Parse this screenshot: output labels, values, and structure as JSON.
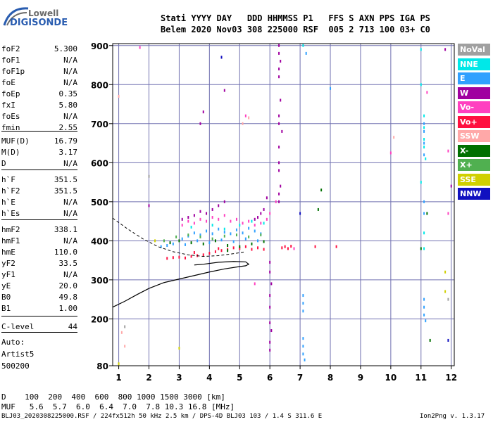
{
  "logo": {
    "top": "Lowell",
    "main": "DIGISONDE"
  },
  "header": {
    "line1": "Stati YYYY DAY   DDD HHMMSS P1   FFS S AXN PPS IGA PS",
    "line2": "Belem 2020 Nov03 308 225000 RSF  005 2 713 100 03+ C0"
  },
  "params": [
    {
      "name": "foF2",
      "value": "5.300"
    },
    {
      "name": "foF1",
      "value": "N/A"
    },
    {
      "name": "foF1p",
      "value": "N/A"
    },
    {
      "name": "foE",
      "value": "N/A"
    },
    {
      "name": "foEp",
      "value": "0.35"
    },
    {
      "name": "fxI",
      "value": "5.80"
    },
    {
      "name": "foEs",
      "value": "N/A"
    },
    {
      "name": "fmin",
      "value": "2.55"
    },
    {
      "name": "MUF(D)",
      "value": "16.79"
    },
    {
      "name": "M(D)",
      "value": "3.17"
    },
    {
      "name": "D",
      "value": "N/A"
    },
    {
      "name": "h`F",
      "value": "351.5"
    },
    {
      "name": "h`F2",
      "value": "351.5"
    },
    {
      "name": "h`E",
      "value": "N/A"
    },
    {
      "name": "h`Es",
      "value": "N/A"
    },
    {
      "name": "hmF2",
      "value": "338.1"
    },
    {
      "name": "hmF1",
      "value": "N/A"
    },
    {
      "name": "hmE",
      "value": "110.0"
    },
    {
      "name": "yF2",
      "value": "33.5"
    },
    {
      "name": "yF1",
      "value": "N/A"
    },
    {
      "name": "yE",
      "value": "20.0"
    },
    {
      "name": "B0",
      "value": "49.8"
    },
    {
      "name": "B1",
      "value": "1.00"
    },
    {
      "name": "C-level",
      "value": "44"
    }
  ],
  "auto": {
    "line1": "Auto:",
    "line2": "Artist5",
    "line3": "500200"
  },
  "legend": [
    {
      "label": "NoVal",
      "color": "#a0a0a0"
    },
    {
      "label": "NNE",
      "color": "#00e8e8"
    },
    {
      "label": "E",
      "color": "#30a0ff"
    },
    {
      "label": "W",
      "color": "#a000a0"
    },
    {
      "label": "Vo-",
      "color": "#ff40c0"
    },
    {
      "label": "Vo+",
      "color": "#ff1040"
    },
    {
      "label": "SSW",
      "color": "#ffa8a8"
    },
    {
      "label": "X-",
      "color": "#007000"
    },
    {
      "label": "X+",
      "color": "#50b050"
    },
    {
      "label": "SSE",
      "color": "#d0d000"
    },
    {
      "label": "NNW",
      "color": "#1010c0"
    }
  ],
  "footer": {
    "d_line": "D    100  200  400  600  800 1000 1500 3000 [km]",
    "muf_line": "MUF   5.6  5.7  6.0  6.4  7.0  7.8 10.3 16.8 [MHz]",
    "filename": "BLJ03_2020308225000.RSF / 224fx512h 50 kHz 2.5 km / DPS-4D BLJ03 103 / 1.4 S 311.6 E",
    "version": "Ion2Png v. 1.3.17"
  },
  "chart_data": {
    "type": "scatter",
    "xlim": [
      0.8,
      12.1
    ],
    "ylim": [
      80,
      905
    ],
    "x_ticks": [
      "1",
      "2",
      "3",
      "4",
      "5",
      "6",
      "7",
      "8",
      "9",
      "10",
      "11",
      "12"
    ],
    "y_ticks": [
      "80",
      "200",
      "300",
      "400",
      "500",
      "600",
      "700",
      "800",
      "900"
    ],
    "grid": true,
    "profile": {
      "x": [
        0.8,
        1.2,
        1.6,
        2.0,
        2.5,
        3.0,
        3.5,
        4.0,
        4.5,
        5.0,
        5.2,
        5.3,
        5.2,
        4.8,
        4.3,
        3.8,
        3.5
      ],
      "y": [
        230,
        245,
        262,
        278,
        293,
        302,
        311,
        320,
        328,
        334,
        336,
        340,
        346,
        347,
        345,
        340,
        338
      ]
    },
    "trace": {
      "x": [
        0.8,
        1.3,
        1.8,
        2.3,
        2.8,
        3.3,
        3.8,
        4.3,
        4.8,
        5.2
      ],
      "y": [
        458,
        430,
        405,
        385,
        372,
        364,
        360,
        362,
        367,
        372
      ]
    },
    "series": [
      {
        "name": "E",
        "color": "#30a0ff",
        "points": [
          [
            3.1,
            405
          ],
          [
            3.3,
            412
          ],
          [
            3.5,
            420
          ],
          [
            3.7,
            415
          ],
          [
            3.9,
            425
          ],
          [
            4.1,
            418
          ],
          [
            4.3,
            430
          ],
          [
            4.5,
            422
          ],
          [
            4.7,
            418
          ],
          [
            4.9,
            428
          ],
          [
            5.1,
            420
          ],
          [
            5.3,
            432
          ],
          [
            5.5,
            425
          ],
          [
            5.7,
            418
          ],
          [
            3.2,
            390
          ],
          [
            3.6,
            400
          ],
          [
            4.0,
            395
          ],
          [
            4.4,
            402
          ],
          [
            4.8,
            398
          ],
          [
            5.2,
            405
          ],
          [
            5.6,
            400
          ],
          [
            2.8,
            392
          ],
          [
            2.6,
            388
          ],
          [
            2.4,
            385
          ],
          [
            7.1,
            150
          ],
          [
            7.1,
            130
          ],
          [
            7.1,
            110
          ],
          [
            7.15,
            95
          ],
          [
            7.1,
            240
          ],
          [
            7.1,
            220
          ],
          [
            7.1,
            260
          ],
          [
            11.1,
            230
          ],
          [
            11.1,
            210
          ],
          [
            11.15,
            195
          ],
          [
            11.1,
            250
          ],
          [
            11.1,
            620
          ],
          [
            11.1,
            650
          ],
          [
            11.1,
            680
          ],
          [
            11.1,
            700
          ],
          [
            11.1,
            470
          ],
          [
            11.1,
            500
          ],
          [
            7.2,
            880
          ],
          [
            8.0,
            790
          ]
        ]
      },
      {
        "name": "NNE",
        "color": "#00e8e8",
        "points": [
          [
            11.1,
            640
          ],
          [
            11.1,
            660
          ],
          [
            11.1,
            690
          ],
          [
            11.1,
            720
          ],
          [
            11.15,
            610
          ],
          [
            7.1,
            900
          ],
          [
            11.0,
            890
          ],
          [
            11.0,
            550
          ],
          [
            11.1,
            380
          ],
          [
            11.1,
            420
          ],
          [
            11.0,
            800
          ],
          [
            4.5,
            430
          ],
          [
            5.0,
            440
          ],
          [
            5.4,
            450
          ],
          [
            5.8,
            445
          ],
          [
            4.1,
            440
          ],
          [
            3.4,
            435
          ]
        ]
      },
      {
        "name": "W",
        "color": "#a000a0",
        "points": [
          [
            6.3,
            900
          ],
          [
            6.3,
            880
          ],
          [
            6.35,
            860
          ],
          [
            6.3,
            840
          ],
          [
            6.3,
            820
          ],
          [
            6.35,
            760
          ],
          [
            6.3,
            720
          ],
          [
            6.3,
            700
          ],
          [
            6.4,
            680
          ],
          [
            6.3,
            640
          ],
          [
            6.3,
            600
          ],
          [
            6.3,
            580
          ],
          [
            6.35,
            540
          ],
          [
            6.3,
            520
          ],
          [
            6.3,
            500
          ],
          [
            6.0,
            120
          ],
          [
            6.0,
            140
          ],
          [
            6.05,
            170
          ],
          [
            6.0,
            190
          ],
          [
            6.0,
            230
          ],
          [
            6.0,
            260
          ],
          [
            6.05,
            290
          ],
          [
            6.0,
            320
          ],
          [
            6.0,
            345
          ],
          [
            5.9,
            510
          ],
          [
            5.8,
            480
          ],
          [
            5.7,
            470
          ],
          [
            5.6,
            460
          ],
          [
            5.5,
            455
          ],
          [
            4.5,
            500
          ],
          [
            4.3,
            490
          ],
          [
            4.1,
            480
          ],
          [
            3.9,
            470
          ],
          [
            3.7,
            475
          ],
          [
            3.5,
            465
          ],
          [
            3.3,
            460
          ],
          [
            3.1,
            455
          ],
          [
            4.4,
            870
          ],
          [
            4.5,
            785
          ],
          [
            3.8,
            730
          ],
          [
            3.7,
            700
          ],
          [
            2.0,
            490
          ],
          [
            11.8,
            890
          ],
          [
            12.0,
            540
          ]
        ]
      },
      {
        "name": "Vo-",
        "color": "#ff40c0",
        "points": [
          [
            3.1,
            440
          ],
          [
            3.3,
            450
          ],
          [
            3.5,
            445
          ],
          [
            3.7,
            455
          ],
          [
            3.9,
            450
          ],
          [
            4.1,
            460
          ],
          [
            4.3,
            455
          ],
          [
            4.5,
            465
          ],
          [
            4.7,
            450
          ],
          [
            4.9,
            455
          ],
          [
            5.1,
            445
          ],
          [
            5.3,
            450
          ],
          [
            5.5,
            440
          ],
          [
            5.7,
            445
          ],
          [
            5.9,
            455
          ],
          [
            6.0,
            470
          ],
          [
            6.2,
            500
          ],
          [
            1.7,
            895
          ],
          [
            5.2,
            720
          ],
          [
            10.0,
            625
          ],
          [
            11.2,
            780
          ],
          [
            11.9,
            630
          ],
          [
            11.9,
            470
          ],
          [
            5.5,
            290
          ],
          [
            6.8,
            380
          ]
        ]
      },
      {
        "name": "Vo+",
        "color": "#ff1040",
        "points": [
          [
            2.6,
            355
          ],
          [
            2.8,
            357
          ],
          [
            3.0,
            358
          ],
          [
            3.2,
            356
          ],
          [
            3.4,
            360
          ],
          [
            3.6,
            362
          ],
          [
            3.8,
            364
          ],
          [
            4.0,
            368
          ],
          [
            4.2,
            372
          ],
          [
            4.4,
            375
          ],
          [
            4.6,
            378
          ],
          [
            4.8,
            382
          ],
          [
            5.0,
            380
          ],
          [
            5.2,
            385
          ],
          [
            5.4,
            378
          ],
          [
            5.6,
            382
          ],
          [
            5.8,
            378
          ],
          [
            6.4,
            382
          ],
          [
            6.5,
            385
          ],
          [
            6.6,
            380
          ],
          [
            6.7,
            386
          ],
          [
            7.5,
            385
          ],
          [
            8.2,
            385
          ],
          [
            3.5,
            370
          ],
          [
            4.3,
            380
          ]
        ]
      },
      {
        "name": "SSW",
        "color": "#ffa8a8",
        "points": [
          [
            1.0,
            770
          ],
          [
            1.2,
            130
          ],
          [
            1.1,
            165
          ],
          [
            10.1,
            665
          ],
          [
            5.3,
            715
          ],
          [
            5.1,
            700
          ]
        ]
      },
      {
        "name": "X-",
        "color": "#007000",
        "points": [
          [
            3.0,
            400
          ],
          [
            3.4,
            395
          ],
          [
            3.8,
            392
          ],
          [
            4.2,
            400
          ],
          [
            4.6,
            388
          ],
          [
            5.0,
            385
          ],
          [
            5.4,
            392
          ],
          [
            5.8,
            398
          ],
          [
            7.6,
            480
          ],
          [
            7.7,
            530
          ],
          [
            11.2,
            470
          ],
          [
            11.0,
            380
          ],
          [
            11.3,
            145
          ],
          [
            4.6,
            375
          ],
          [
            2.7,
            395
          ]
        ]
      },
      {
        "name": "X+",
        "color": "#50b050",
        "points": [
          [
            2.9,
            410
          ],
          [
            3.3,
            415
          ],
          [
            3.7,
            410
          ],
          [
            4.1,
            405
          ],
          [
            4.5,
            412
          ],
          [
            4.9,
            415
          ],
          [
            5.3,
            410
          ],
          [
            5.7,
            415
          ],
          [
            2.5,
            400
          ]
        ]
      },
      {
        "name": "SSE",
        "color": "#d0d000",
        "points": [
          [
            1.0,
            85
          ],
          [
            3.0,
            125
          ],
          [
            11.8,
            320
          ],
          [
            11.8,
            270
          ],
          [
            2.2,
            400
          ]
        ]
      },
      {
        "name": "NNW",
        "color": "#1010c0",
        "points": [
          [
            4.4,
            870
          ],
          [
            7.0,
            470
          ],
          [
            11.9,
            145
          ]
        ]
      },
      {
        "name": "NoVal",
        "color": "#a0a0a0",
        "points": [
          [
            2.0,
            565
          ],
          [
            1.2,
            180
          ],
          [
            11.9,
            250
          ]
        ]
      }
    ]
  }
}
